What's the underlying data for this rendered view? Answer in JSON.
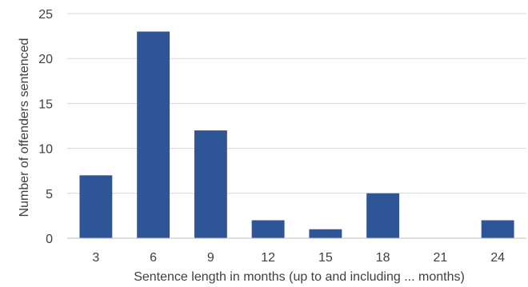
{
  "chart_data": {
    "type": "bar",
    "categories": [
      "3",
      "6",
      "9",
      "12",
      "15",
      "18",
      "21",
      "24"
    ],
    "values": [
      7,
      23,
      12,
      2,
      1,
      5,
      0,
      2
    ],
    "title": "",
    "xlabel": "Sentence length in months (up to and including ... months)",
    "ylabel": "Number of offenders sentenced",
    "ylim": [
      0,
      25
    ],
    "yticks": [
      0,
      5,
      10,
      15,
      20,
      25
    ],
    "grid": true,
    "bar_color": "#2f5597"
  }
}
